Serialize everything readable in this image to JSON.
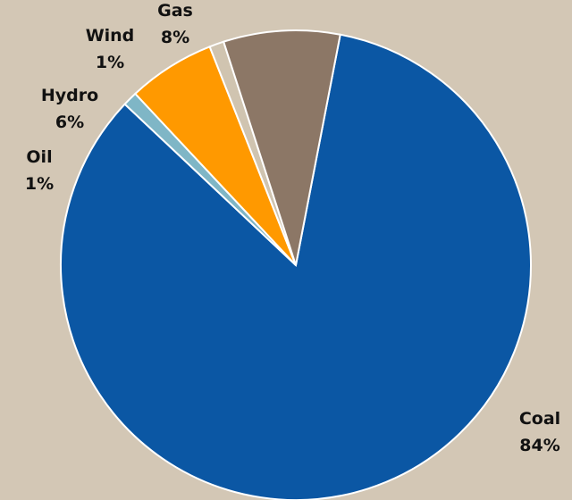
{
  "chart_data": {
    "type": "pie",
    "title": "",
    "slices": [
      {
        "name": "Coal",
        "value": 84,
        "label": "84%",
        "color": "#0b57a4"
      },
      {
        "name": "Oil",
        "value": 1,
        "label": "1%",
        "color": "#7fb6c6"
      },
      {
        "name": "Hydro",
        "value": 6,
        "label": "6%",
        "color": "#ff9900"
      },
      {
        "name": "Wind",
        "value": 1,
        "label": "1%",
        "color": "#d0c4b0"
      },
      {
        "name": "Gas",
        "value": 8,
        "label": "8%",
        "color": "#8c7766"
      }
    ],
    "background": "#d3c7b5",
    "legend": "none"
  }
}
